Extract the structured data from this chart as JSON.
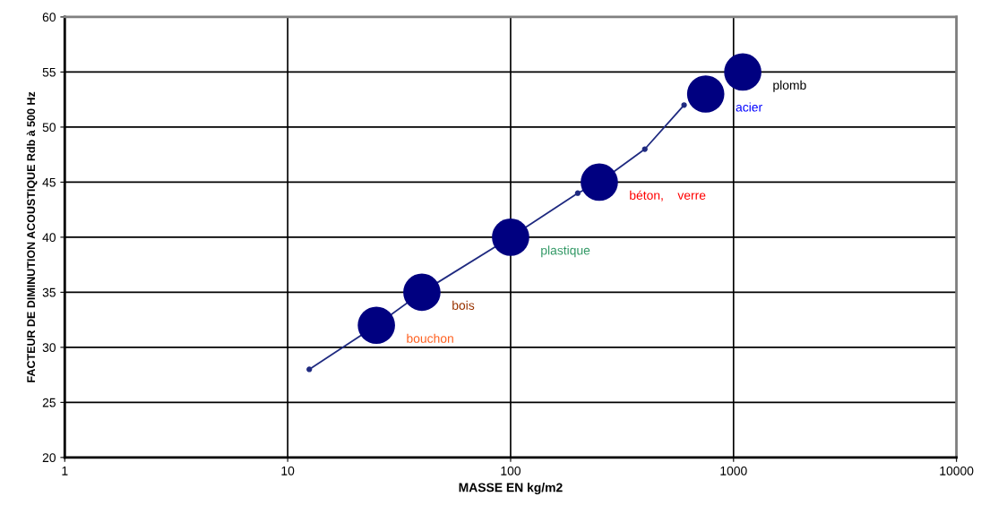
{
  "chart_data": {
    "type": "bubble",
    "xlabel": "MASSE EN kg/m2",
    "ylabel": "FACTEUR DE DIMINUTION ACOUSTIQUE Rdb à 500 Hz",
    "log": "x",
    "xlim": [
      1,
      10000
    ],
    "xticks": [
      1,
      10,
      100,
      1000,
      10000
    ],
    "ylim": [
      20,
      60
    ],
    "yticks": [
      20,
      25,
      30,
      35,
      40,
      45,
      50,
      55,
      60
    ],
    "grid": true,
    "legend": false,
    "series": [
      {
        "type": "line",
        "color": "#1f2a80",
        "marker": "circle",
        "line_style": "solid",
        "x": [
          12.5,
          25,
          40,
          100,
          200,
          250,
          400,
          600
        ],
        "values": [
          28,
          32,
          35,
          40,
          44,
          45,
          48,
          52
        ]
      },
      {
        "color": "#000080",
        "x": [
          25,
          40,
          100,
          250,
          750,
          1100
        ],
        "values": [
          32,
          35,
          40,
          45,
          53,
          55
        ],
        "sizes": [
          1,
          1,
          1,
          1,
          1,
          1
        ]
      }
    ],
    "annotations": [
      {
        "text": "bouchon",
        "x": 25,
        "y": 32
      },
      {
        "text": "bois",
        "x": 40,
        "y": 35
      },
      {
        "text": "plastique",
        "x": 100,
        "y": 40
      },
      {
        "text": "béton,    verre",
        "x": 250,
        "y": 45
      },
      {
        "text": "acier",
        "x": 750,
        "y": 53
      },
      {
        "text": "plomb",
        "x": 1100,
        "y": 55
      }
    ]
  }
}
